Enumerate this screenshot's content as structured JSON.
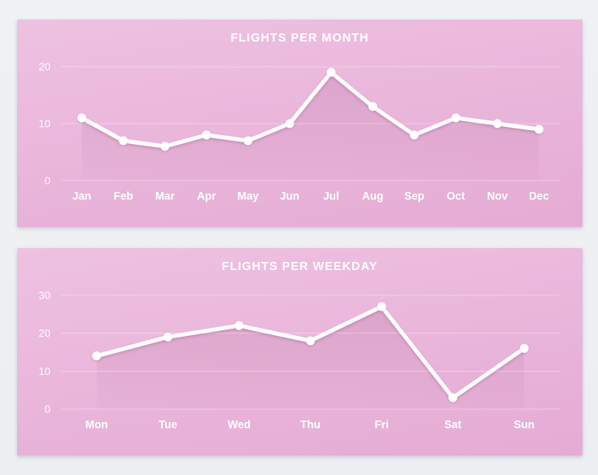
{
  "theme": {
    "page_bg": "#eef0f3",
    "card_bg_top": "#eec1e1",
    "card_bg_bottom": "#e5abd4",
    "line_color": "#ffffff",
    "marker_color": "#ffffff",
    "grid_color": "#ffffff",
    "label_color": "#ffffff",
    "area_fill_color": "#802a60"
  },
  "chart_data": [
    {
      "type": "line",
      "title": "FLIGHTS PER MONTH",
      "categories": [
        "Jan",
        "Feb",
        "Mar",
        "Apr",
        "May",
        "Jun",
        "Jul",
        "Aug",
        "Sep",
        "Oct",
        "Nov",
        "Dec"
      ],
      "values": [
        11,
        7,
        6,
        8,
        7,
        10,
        19,
        13,
        8,
        11,
        10,
        9
      ],
      "yticks": [
        0,
        10,
        20
      ],
      "ylim": [
        0,
        20
      ],
      "xlabel": "",
      "ylabel": "",
      "grid": true,
      "legend": false,
      "area_fill": true
    },
    {
      "type": "line",
      "title": "FLIGHTS PER WEEKDAY",
      "categories": [
        "Mon",
        "Tue",
        "Wed",
        "Thu",
        "Fri",
        "Sat",
        "Sun"
      ],
      "values": [
        14,
        19,
        22,
        18,
        27,
        3,
        16
      ],
      "yticks": [
        0,
        10,
        20,
        30
      ],
      "ylim": [
        0,
        30
      ],
      "xlabel": "",
      "ylabel": "",
      "grid": true,
      "legend": false,
      "area_fill": true
    }
  ]
}
